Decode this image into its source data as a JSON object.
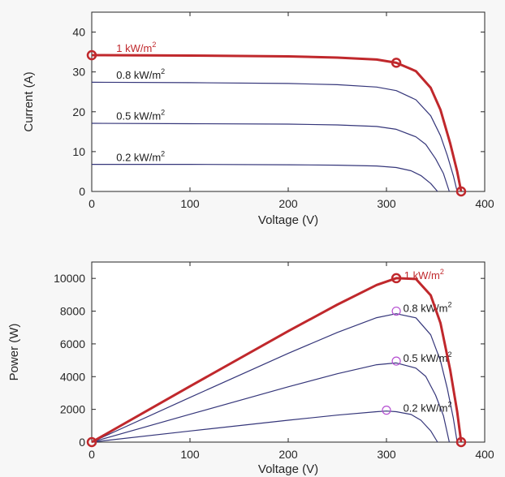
{
  "colors": {
    "highlight": "#c0282c",
    "curve": "#35367a",
    "marker_secondary": "#b54fd1"
  },
  "chart_data": [
    {
      "type": "line",
      "xlabel": "Voltage (V)",
      "ylabel": "Current (A)",
      "xlim": [
        0,
        400
      ],
      "ylim": [
        0,
        45
      ],
      "xticks": [
        "0",
        "100",
        "200",
        "300",
        "400"
      ],
      "yticks": [
        "0",
        "10",
        "20",
        "30",
        "40"
      ],
      "series": [
        {
          "name": "1 kW/m",
          "name_superscript": "2",
          "highlight": true,
          "x": [
            0,
            100,
            200,
            250,
            290,
            310,
            330,
            345,
            355,
            365,
            372,
            376
          ],
          "y": [
            34.2,
            34.1,
            33.9,
            33.6,
            33.1,
            32.3,
            30.2,
            26.0,
            20.5,
            12.0,
            5.0,
            0
          ],
          "markers": [
            [
              0,
              34.2
            ],
            [
              310,
              32.3
            ],
            [
              376,
              0
            ]
          ],
          "label_at": [
            25,
            35
          ]
        },
        {
          "name": "0.8 kW/m",
          "name_superscript": "2",
          "x": [
            0,
            100,
            200,
            250,
            290,
            310,
            330,
            345,
            355,
            362,
            368,
            372
          ],
          "y": [
            27.4,
            27.3,
            27.1,
            26.8,
            26.2,
            25.3,
            23.0,
            19.0,
            14.0,
            9.0,
            4.0,
            0
          ],
          "label_at": [
            25,
            28.3
          ]
        },
        {
          "name": "0.5 kW/m",
          "name_superscript": "2",
          "x": [
            0,
            100,
            200,
            250,
            290,
            310,
            330,
            340,
            350,
            358,
            364
          ],
          "y": [
            17.1,
            17.0,
            16.9,
            16.7,
            16.3,
            15.6,
            13.7,
            11.8,
            8.2,
            4.5,
            0
          ],
          "label_at": [
            25,
            18
          ]
        },
        {
          "name": "0.2 kW/m",
          "name_superscript": "2",
          "x": [
            0,
            100,
            200,
            250,
            290,
            310,
            325,
            335,
            345,
            352
          ],
          "y": [
            6.8,
            6.8,
            6.7,
            6.6,
            6.4,
            6.0,
            5.2,
            4.0,
            2.0,
            0
          ],
          "label_at": [
            25,
            7.6
          ]
        }
      ]
    },
    {
      "type": "line",
      "xlabel": "Voltage (V)",
      "ylabel": "Power (W)",
      "xlim": [
        0,
        400
      ],
      "ylim": [
        0,
        11000
      ],
      "xticks": [
        "0",
        "100",
        "200",
        "300",
        "400"
      ],
      "yticks": [
        "0",
        "2000",
        "4000",
        "6000",
        "8000",
        "10000"
      ],
      "series": [
        {
          "name": "1 kW/m",
          "name_superscript": "2",
          "highlight": true,
          "x": [
            0,
            100,
            200,
            250,
            290,
            310,
            330,
            345,
            355,
            365,
            372,
            376
          ],
          "y": [
            0,
            3410,
            6780,
            8400,
            9600,
            10013,
            9966,
            8970,
            7280,
            4380,
            1860,
            0
          ],
          "markers": [
            [
              0,
              0
            ],
            [
              310,
              10013
            ],
            [
              376,
              0
            ]
          ],
          "label_at": [
            318,
            9950
          ]
        },
        {
          "name": "0.8 kW/m",
          "name_superscript": "2",
          "x": [
            0,
            100,
            200,
            250,
            290,
            310,
            330,
            345,
            355,
            362,
            368,
            372
          ],
          "y": [
            0,
            2730,
            5420,
            6700,
            7600,
            7843,
            7590,
            6555,
            4970,
            3258,
            1472,
            0
          ],
          "markers": [
            [
              310,
              8000
            ]
          ],
          "label_at": [
            317,
            7950
          ]
        },
        {
          "name": "0.5 kW/m",
          "name_superscript": "2",
          "x": [
            0,
            100,
            200,
            250,
            290,
            310,
            330,
            340,
            350,
            358,
            364
          ],
          "y": [
            0,
            1700,
            3380,
            4175,
            4727,
            4836,
            4521,
            4012,
            2870,
            1611,
            0
          ],
          "markers": [
            [
              310,
              4950
            ]
          ],
          "label_at": [
            317,
            4900
          ]
        },
        {
          "name": "0.2 kW/m",
          "name_superscript": "2",
          "x": [
            0,
            100,
            200,
            250,
            290,
            300,
            310,
            325,
            335,
            345,
            352
          ],
          "y": [
            0,
            680,
            1340,
            1650,
            1856,
            1900,
            1860,
            1690,
            1340,
            690,
            0
          ],
          "markers": [
            [
              300,
              1950
            ]
          ],
          "label_at": [
            317,
            1870
          ]
        }
      ]
    }
  ]
}
